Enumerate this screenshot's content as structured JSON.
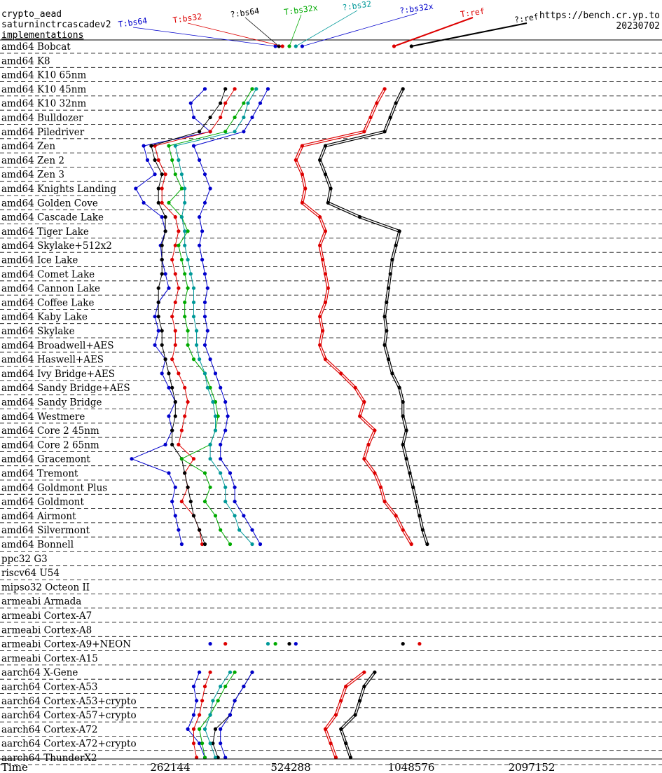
{
  "header": {
    "line1": "crypto_aead",
    "line2": "saturninctrcascadev2",
    "line3": "implementations",
    "site": "https://bench.cr.yp.to",
    "date": "20230702"
  },
  "chart_data": {
    "type": "line",
    "xlabel": "Time",
    "x_scale": "log2",
    "xlim": [
      131072,
      4194304
    ],
    "x_ticks": [
      262144,
      524288,
      1048576,
      2097152
    ],
    "x_tick_labels": [
      "262144",
      "524288",
      "1048576",
      "2097152"
    ],
    "grid": "dashed separators between machine rows",
    "legend": "top, rotated labels",
    "rows": [
      "amd64 Bobcat",
      "amd64 K8",
      "amd64 K10 65nm",
      "amd64 K10 45nm",
      "amd64 K10 32nm",
      "amd64 Bulldozer",
      "amd64 Piledriver",
      "amd64 Zen",
      "amd64 Zen 2",
      "amd64 Zen 3",
      "amd64 Knights Landing",
      "amd64 Golden Cove",
      "amd64 Cascade Lake",
      "amd64 Tiger Lake",
      "amd64 Skylake+512x2",
      "amd64 Ice Lake",
      "amd64 Comet Lake",
      "amd64 Cannon Lake",
      "amd64 Coffee Lake",
      "amd64 Kaby Lake",
      "amd64 Skylake",
      "amd64 Broadwell+AES",
      "amd64 Haswell+AES",
      "amd64 Ivy Bridge+AES",
      "amd64 Sandy Bridge+AES",
      "amd64 Sandy Bridge",
      "amd64 Westmere",
      "amd64 Core 2 45nm",
      "amd64 Core 2 65nm",
      "amd64 Gracemont",
      "amd64 Tremont",
      "amd64 Goldmont Plus",
      "amd64 Goldmont",
      "amd64 Airmont",
      "amd64 Silvermont",
      "amd64 Bonnell",
      "ppc32 G3",
      "riscv64 U54",
      "mipso32 Octeon II",
      "armeabi Armada",
      "armeabi Cortex-A7",
      "armeabi Cortex-A8",
      "armeabi Cortex-A9+NEON",
      "armeabi Cortex-A15",
      "aarch64 X-Gene",
      "aarch64 Cortex-A53",
      "aarch64 Cortex-A53+crypto",
      "aarch64 Cortex-A57+crypto",
      "aarch64 Cortex-A72",
      "aarch64 Cortex-A72+crypto",
      "aarch64 ThunderX2"
    ],
    "series": [
      {
        "name": "T:bs64",
        "color": "#0000cc",
        "double": false,
        "values": [
          480000,
          null,
          null,
          320000,
          295000,
          300000,
          330000,
          225000,
          230000,
          240000,
          215000,
          225000,
          250000,
          255000,
          248000,
          250000,
          255000,
          260000,
          245000,
          240000,
          245000,
          240000,
          255000,
          250000,
          260000,
          270000,
          260000,
          265000,
          255000,
          210000,
          260000,
          270000,
          265000,
          270000,
          275000,
          280000,
          null,
          null,
          null,
          null,
          null,
          null,
          330000,
          null,
          310000,
          300000,
          305000,
          300000,
          290000,
          310000,
          320000
        ]
      },
      {
        "name": "T:bs32",
        "color": "#dd0000",
        "double": false,
        "values": [
          500000,
          null,
          null,
          380000,
          360000,
          350000,
          330000,
          240000,
          245000,
          255000,
          250000,
          250000,
          270000,
          275000,
          270000,
          265000,
          270000,
          275000,
          270000,
          265000,
          270000,
          270000,
          265000,
          275000,
          285000,
          290000,
          285000,
          280000,
          275000,
          300000,
          285000,
          290000,
          280000,
          300000,
          310000,
          315000,
          null,
          null,
          null,
          null,
          null,
          null,
          360000,
          null,
          330000,
          320000,
          315000,
          310000,
          300000,
          300000,
          305000
        ]
      },
      {
        "name": "?:bs64",
        "color": "#000000",
        "double": false,
        "values": [
          490000,
          null,
          null,
          360000,
          350000,
          330000,
          310000,
          235000,
          240000,
          250000,
          245000,
          245000,
          255000,
          255000,
          250000,
          250000,
          250000,
          245000,
          245000,
          245000,
          250000,
          250000,
          255000,
          260000,
          265000,
          270000,
          270000,
          265000,
          265000,
          280000,
          285000,
          290000,
          295000,
          300000,
          310000,
          320000,
          null,
          null,
          null,
          null,
          null,
          null,
          520000,
          null,
          420000,
          400000,
          380000,
          370000,
          340000,
          335000,
          345000
        ]
      },
      {
        "name": "T:bs32x",
        "color": "#00aa00",
        "double": false,
        "values": [
          520000,
          null,
          null,
          420000,
          400000,
          380000,
          360000,
          260000,
          265000,
          270000,
          280000,
          260000,
          280000,
          290000,
          275000,
          280000,
          285000,
          290000,
          285000,
          285000,
          290000,
          290000,
          300000,
          320000,
          330000,
          340000,
          345000,
          340000,
          330000,
          280000,
          320000,
          330000,
          320000,
          340000,
          350000,
          370000,
          null,
          null,
          null,
          null,
          null,
          null,
          480000,
          null,
          380000,
          360000,
          345000,
          330000,
          310000,
          315000,
          320000
        ]
      },
      {
        "name": "?:bs32",
        "color": "#009999",
        "double": false,
        "values": [
          540000,
          null,
          null,
          430000,
          410000,
          400000,
          380000,
          270000,
          275000,
          280000,
          285000,
          285000,
          280000,
          285000,
          285000,
          290000,
          295000,
          300000,
          300000,
          300000,
          305000,
          305000,
          310000,
          320000,
          325000,
          335000,
          340000,
          340000,
          330000,
          330000,
          350000,
          360000,
          360000,
          380000,
          390000,
          420000,
          null,
          null,
          null,
          null,
          null,
          null,
          460000,
          null,
          370000,
          350000,
          335000,
          330000,
          320000,
          330000,
          340000
        ]
      },
      {
        "name": "?:bs32x",
        "color": "#0000cc",
        "double": false,
        "values": [
          560000,
          null,
          null,
          460000,
          440000,
          420000,
          400000,
          300000,
          310000,
          320000,
          330000,
          320000,
          310000,
          315000,
          310000,
          315000,
          320000,
          325000,
          320000,
          320000,
          325000,
          320000,
          330000,
          340000,
          350000,
          360000,
          365000,
          360000,
          350000,
          350000,
          370000,
          380000,
          380000,
          400000,
          420000,
          440000,
          null,
          null,
          null,
          null,
          null,
          null,
          540000,
          null,
          420000,
          400000,
          380000,
          370000,
          350000,
          350000,
          360000
        ]
      },
      {
        "name": "T:ref",
        "color": "#dd0000",
        "double": true,
        "values": [
          950000,
          null,
          null,
          900000,
          860000,
          830000,
          800000,
          560000,
          540000,
          560000,
          570000,
          560000,
          620000,
          640000,
          620000,
          630000,
          640000,
          650000,
          640000,
          620000,
          630000,
          620000,
          640000,
          700000,
          760000,
          800000,
          780000,
          850000,
          820000,
          800000,
          850000,
          880000,
          900000,
          960000,
          1000000,
          1050000,
          null,
          null,
          null,
          null,
          null,
          null,
          1100000,
          null,
          800000,
          720000,
          700000,
          680000,
          640000,
          660000,
          680000
        ]
      },
      {
        "name": "?:ref",
        "color": "#000000",
        "double": true,
        "values": [
          1050000,
          null,
          null,
          1000000,
          960000,
          930000,
          900000,
          640000,
          620000,
          640000,
          660000,
          650000,
          780000,
          980000,
          960000,
          940000,
          930000,
          920000,
          910000,
          900000,
          910000,
          900000,
          920000,
          940000,
          980000,
          1000000,
          1000000,
          1020000,
          1000000,
          1020000,
          1040000,
          1060000,
          1080000,
          1100000,
          1120000,
          1150000,
          null,
          null,
          null,
          null,
          null,
          null,
          1000000,
          null,
          850000,
          800000,
          780000,
          760000,
          700000,
          720000,
          740000
        ]
      }
    ]
  }
}
